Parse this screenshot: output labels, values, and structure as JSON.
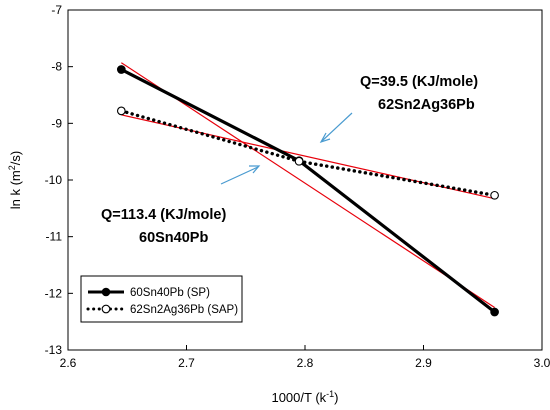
{
  "chart_data": {
    "type": "line",
    "xlim": [
      2.6,
      3.0
    ],
    "ylim": [
      -13,
      -7
    ],
    "x_ticks": [
      2.6,
      2.7,
      2.8,
      2.9,
      3.0
    ],
    "x_tick_labels": [
      "2.6",
      "2.7",
      "2.8",
      "2.9",
      "3.0"
    ],
    "y_ticks": [
      -13,
      -12,
      -11,
      -10,
      -9,
      -8,
      -7
    ],
    "y_tick_labels": [
      "-13",
      "-12",
      "-11",
      "-10",
      "-9",
      "-8",
      "-7"
    ],
    "xlabel": {
      "main": "1000/T (k",
      "sup": "-1",
      "end": ")"
    },
    "ylabel": {
      "main": "ln k (m",
      "sup": "2",
      "end": "/s)"
    },
    "grid": false,
    "legend_position": "bottom-left",
    "series": [
      {
        "name": "60Sn40Pb (SP)",
        "style": "solid",
        "marker": "filled-circle",
        "color": "#000000",
        "x": [
          2.645,
          2.795,
          2.96
        ],
        "y": [
          -8.05,
          -9.66,
          -12.33
        ]
      },
      {
        "name": "62Sn2Ag36Pb (SAP)",
        "style": "dotted",
        "marker": "open-circle",
        "color": "#000000",
        "x": [
          2.645,
          2.795,
          2.96
        ],
        "y": [
          -8.78,
          -9.67,
          -10.27
        ]
      }
    ],
    "fit_lines": [
      {
        "color": "#e8000b",
        "x": [
          2.645,
          2.96
        ],
        "y": [
          -7.93,
          -12.25
        ]
      },
      {
        "color": "#e8000b",
        "x": [
          2.645,
          2.96
        ],
        "y": [
          -8.85,
          -10.33
        ]
      }
    ],
    "annotations": [
      {
        "line1": "Q=39.5 (KJ/mole)",
        "line2": "62Sn2Ag36Pb"
      },
      {
        "line1": "Q=113.4 (KJ/mole)",
        "line2": "60Sn40Pb"
      }
    ],
    "arrow_color": "#4a9bd0"
  }
}
